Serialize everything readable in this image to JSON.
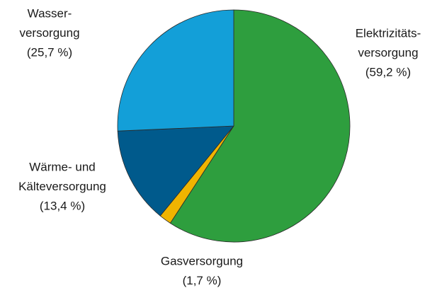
{
  "chart_data": {
    "type": "pie",
    "categories": [
      [
        "Elektrizitäts-",
        "versorgung"
      ],
      [
        "Gasversorgung"
      ],
      [
        "Wärme- und",
        "Kälteversorgung"
      ],
      [
        "Wasser-",
        "versorgung"
      ]
    ],
    "values": [
      59.2,
      1.7,
      13.4,
      25.7
    ],
    "value_labels": [
      "(59,2 %)",
      "(1,7 %)",
      "(13,4 %)",
      "(25,7 %)"
    ],
    "colors": [
      "#2e9e3e",
      "#f0b400",
      "#005a8c",
      "#139fd8"
    ]
  }
}
